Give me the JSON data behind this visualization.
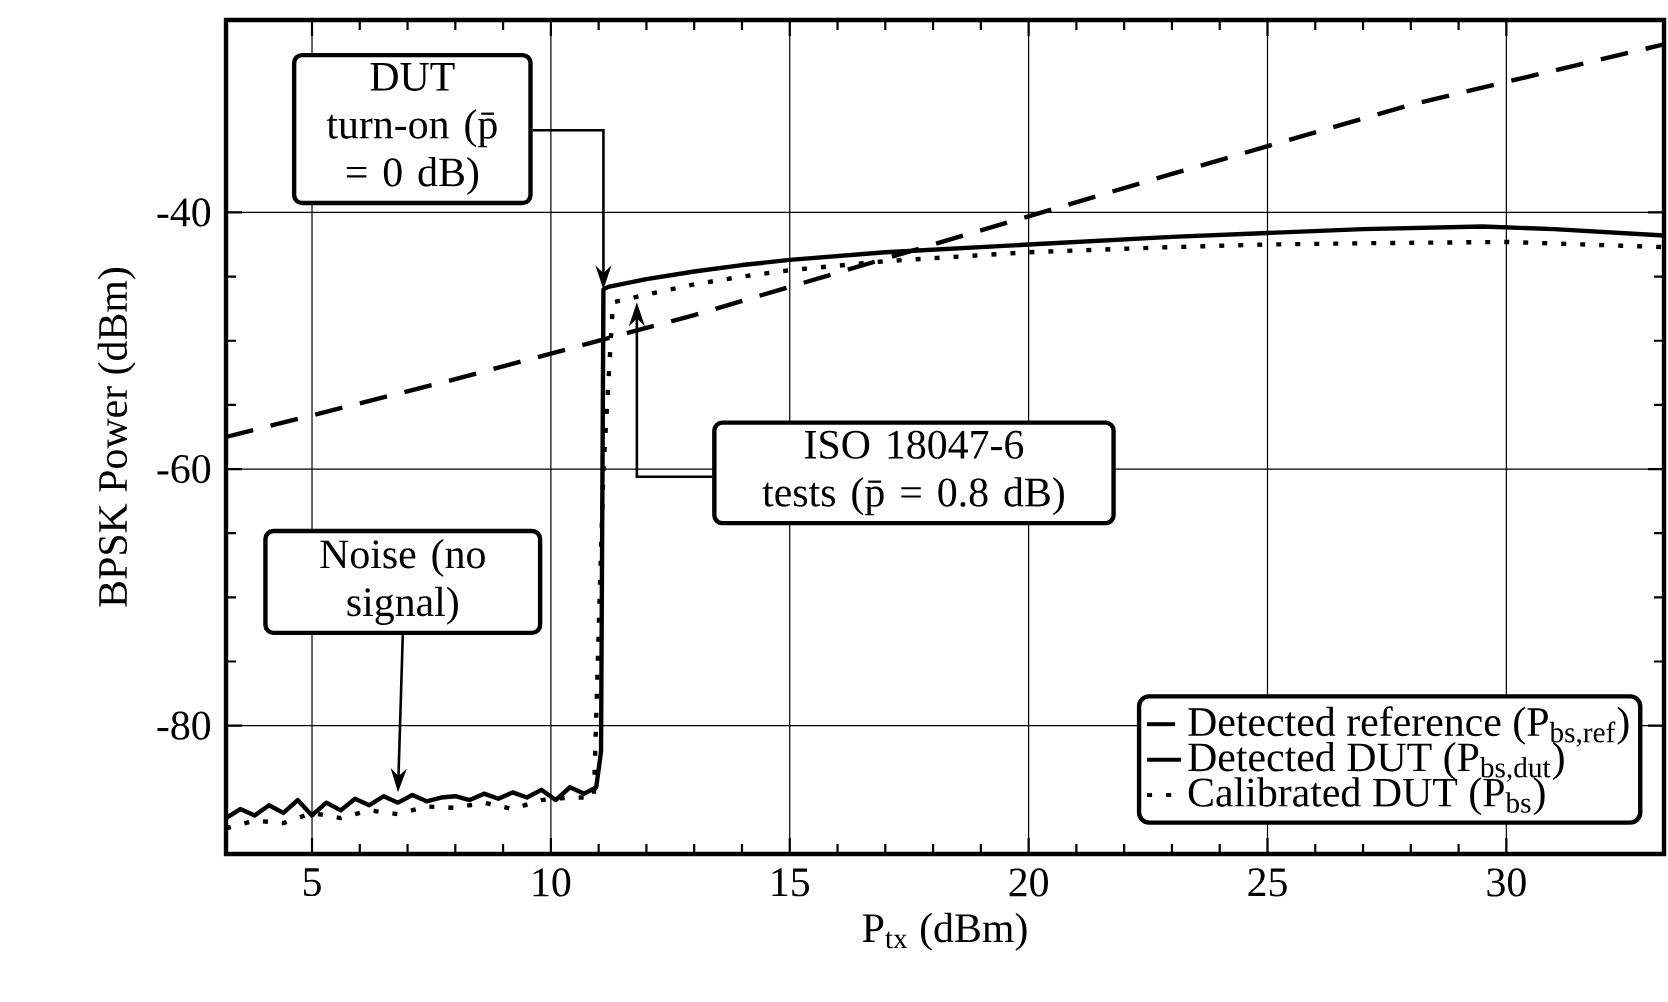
{
  "chart_data": {
    "type": "line",
    "xlabel": "P$_{tx}$ (dBm)",
    "ylabel": "BPSK Power (dBm)",
    "xlim": [
      3.2,
      33.3
    ],
    "ylim": [
      -90,
      -25
    ],
    "xticks": [
      5,
      10,
      15,
      20,
      25,
      30
    ],
    "yticks": [
      -80,
      -60,
      -40
    ],
    "grid": true,
    "legend": "bottom right",
    "marker": "none",
    "series": [
      {
        "name": "Detected reference (P$_{bs,ref}$)",
        "color": "#000000",
        "line_style": "dashed",
        "x": [
          3.2,
          8,
          13,
          18,
          23,
          28,
          33.3
        ],
        "values": [
          -57.5,
          -53,
          -48,
          -42.5,
          -37,
          -31.6,
          -26.9
        ]
      },
      {
        "name": "Detected DUT (P$_{bs,dut}$)",
        "color": "#000000",
        "line_style": "solid",
        "x": [
          3.2,
          3.5,
          3.8,
          4.1,
          4.4,
          4.7,
          5.0,
          5.3,
          5.6,
          5.9,
          6.2,
          6.5,
          6.8,
          7.1,
          7.4,
          7.7,
          8.0,
          8.3,
          8.6,
          8.9,
          9.2,
          9.5,
          9.8,
          10.1,
          10.4,
          10.7,
          10.95,
          11.05,
          11.1,
          11.2,
          12,
          13,
          14,
          15,
          17,
          20,
          23,
          25,
          27,
          29.5,
          31,
          33.3
        ],
        "values": [
          -87.2,
          -86.5,
          -87.0,
          -86.2,
          -86.8,
          -85.8,
          -87.0,
          -86.0,
          -86.6,
          -85.7,
          -86.2,
          -85.5,
          -86.0,
          -85.4,
          -85.9,
          -85.6,
          -85.5,
          -85.8,
          -85.3,
          -85.7,
          -85.2,
          -85.6,
          -85.0,
          -85.8,
          -84.8,
          -85.3,
          -84.8,
          -82,
          -46,
          -45.8,
          -45.2,
          -44.6,
          -44.1,
          -43.7,
          -43.1,
          -42.5,
          -41.9,
          -41.6,
          -41.3,
          -41.1,
          -41.3,
          -41.8
        ]
      },
      {
        "name": "Calibrated DUT (P$_{bs}$)",
        "color": "#000000",
        "line_style": "dotted",
        "x": [
          3.2,
          3.8,
          4.4,
          5.0,
          5.6,
          6.2,
          6.8,
          7.4,
          8.0,
          8.6,
          9.2,
          9.8,
          10.4,
          10.9,
          11.1,
          11.3,
          12,
          13,
          14,
          15,
          17,
          20,
          23,
          25,
          27,
          30,
          33.3
        ],
        "values": [
          -88.0,
          -87.4,
          -87.6,
          -86.8,
          -87.2,
          -86.6,
          -86.9,
          -86.3,
          -86.4,
          -86.0,
          -86.5,
          -85.8,
          -85.6,
          -85.6,
          -60,
          -47.0,
          -46.4,
          -45.6,
          -45.0,
          -44.5,
          -43.8,
          -43.1,
          -42.7,
          -42.5,
          -42.4,
          -42.3,
          -42.7
        ]
      }
    ],
    "annotations": [
      {
        "text": "DUT turn-on (p̄ = 0 dB)",
        "x": 11.1,
        "y": -46
      },
      {
        "text": "ISO 18047-6 tests (p̄ = 0.8 dB)",
        "x": 11.8,
        "y": -47
      },
      {
        "text": "Noise (no signal)",
        "x": 6.8,
        "y": -85.2
      }
    ]
  }
}
